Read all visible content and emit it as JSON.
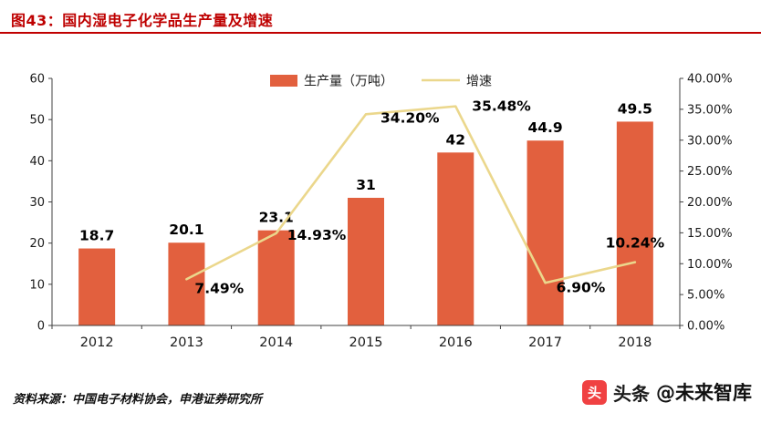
{
  "header": {
    "title": "图43：国内湿电子化学品生产量及增速"
  },
  "chart_data": {
    "type": "bar+line",
    "categories": [
      "2012",
      "2013",
      "2014",
      "2015",
      "2016",
      "2017",
      "2018"
    ],
    "series": [
      {
        "name": "生产量（万吨）",
        "type": "bar",
        "axis": "left",
        "color": "#E2603E",
        "values": [
          18.7,
          20.1,
          23.1,
          31,
          42,
          44.9,
          49.5
        ],
        "labels": [
          "18.7",
          "20.1",
          "23.1",
          "31",
          "42",
          "44.9",
          "49.5"
        ]
      },
      {
        "name": "增速",
        "type": "line",
        "axis": "right",
        "color": "#EBD78C",
        "values": [
          null,
          7.49,
          14.93,
          34.2,
          35.48,
          6.9,
          10.24
        ],
        "labels": [
          "",
          "7.49%",
          "14.93%",
          "34.20%",
          "35.48%",
          "6.90%",
          "10.24%"
        ]
      }
    ],
    "left_axis": {
      "min": 0,
      "max": 60,
      "step": 10,
      "ticks": [
        "0",
        "10",
        "20",
        "30",
        "40",
        "50",
        "60"
      ]
    },
    "right_axis": {
      "min": 0,
      "max": 40,
      "step": 5,
      "ticks": [
        "0.00%",
        "5.00%",
        "10.00%",
        "15.00%",
        "20.00%",
        "25.00%",
        "30.00%",
        "35.00%",
        "40.00%"
      ]
    },
    "legend_position": "top-center",
    "grid": false
  },
  "footer": {
    "source": "资料来源：中国电子材料协会，申港证券研究所",
    "watermark": {
      "brand": "头条",
      "handle": "@未来智库"
    }
  },
  "colors": {
    "title": "#C00000",
    "bar": "#E2603E",
    "line": "#EBD78C"
  }
}
